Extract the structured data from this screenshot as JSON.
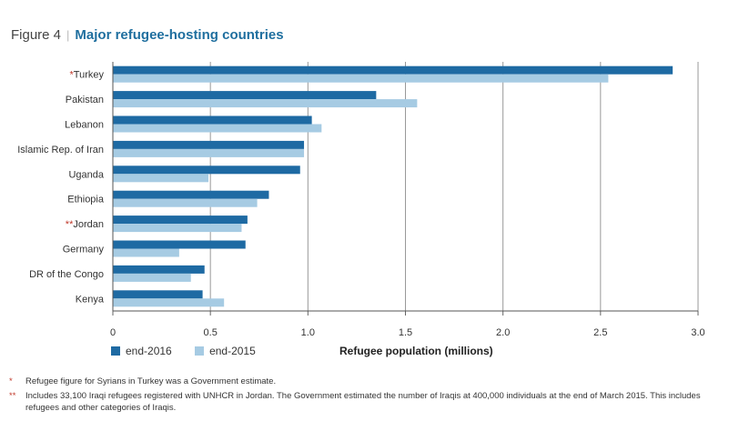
{
  "figure": {
    "label": "Figure 4",
    "separator": "|",
    "title": "Major refugee-hosting countries"
  },
  "colors": {
    "end2016": "#1e6aa3",
    "end2015": "#a6cbe3",
    "grid": "#999999",
    "accent": "#c0392b",
    "title": "#1f6f9f"
  },
  "legend": [
    {
      "label": "end-2016",
      "color": "#1e6aa3"
    },
    {
      "label": "end-2015",
      "color": "#a6cbe3"
    }
  ],
  "chart_data": {
    "type": "bar",
    "orientation": "horizontal",
    "categories": [
      {
        "marker": "*",
        "name": "Turkey"
      },
      {
        "marker": "",
        "name": "Pakistan"
      },
      {
        "marker": "",
        "name": "Lebanon"
      },
      {
        "marker": "",
        "name": "Islamic Rep. of Iran"
      },
      {
        "marker": "",
        "name": "Uganda"
      },
      {
        "marker": "",
        "name": "Ethiopia"
      },
      {
        "marker": "**",
        "name": "Jordan"
      },
      {
        "marker": "",
        "name": "Germany"
      },
      {
        "marker": "",
        "name": "DR of the Congo"
      },
      {
        "marker": "",
        "name": "Kenya"
      }
    ],
    "series": [
      {
        "name": "end-2016",
        "values": [
          2.87,
          1.35,
          1.02,
          0.98,
          0.96,
          0.8,
          0.69,
          0.68,
          0.47,
          0.46
        ]
      },
      {
        "name": "end-2015",
        "values": [
          2.54,
          1.56,
          1.07,
          0.98,
          0.49,
          0.74,
          0.66,
          0.34,
          0.4,
          0.57
        ]
      }
    ],
    "xlabel": "Refugee population (millions)",
    "xlim": [
      0,
      3.0
    ],
    "xticks": [
      "0",
      "0.5",
      "1.0",
      "1.5",
      "2.0",
      "2.5",
      "3.0"
    ],
    "grid": "vertical",
    "legend_position": "bottom-left"
  },
  "notes": [
    {
      "mark": "*",
      "text": "Refugee figure for Syrians in Turkey was a Government estimate."
    },
    {
      "mark": "**",
      "text": "Includes 33,100 Iraqi refugees registered with UNHCR in Jordan. The Government estimated the number of Iraqis at 400,000 individuals at the end of March 2015. This includes refugees and other categories of Iraqis."
    }
  ]
}
